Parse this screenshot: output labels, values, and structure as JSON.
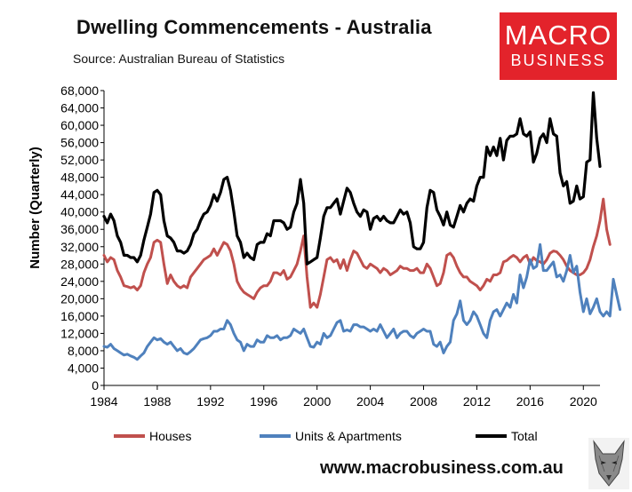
{
  "header": {
    "title": "Dwelling Commencements - Australia",
    "source": "Source:  Australian Bureau of Statistics"
  },
  "logo": {
    "line1": "MACRO",
    "line2": "BUSINESS",
    "color": "#e3232b"
  },
  "footer": {
    "url": "www.macrobusiness.com.au"
  },
  "chart_data": {
    "type": "line",
    "title": "Dwelling Commencements - Australia",
    "xlabel": "",
    "ylabel": "Number (Quarterly)",
    "ylim": [
      0,
      68000
    ],
    "xlim": [
      1984.0,
      2021.25
    ],
    "grid": false,
    "legend_position": "bottom",
    "x_ticks": [
      "1984",
      "1988",
      "1992",
      "1996",
      "2000",
      "2004",
      "2008",
      "2012",
      "2016",
      "2020"
    ],
    "y_ticks": [
      "0",
      "4,000",
      "8,000",
      "12,000",
      "16,000",
      "20,000",
      "24,000",
      "28,000",
      "32,000",
      "36,000",
      "40,000",
      "44,000",
      "48,000",
      "52,000",
      "56,000",
      "60,000",
      "64,000",
      "68,000"
    ],
    "x_start": 1984.0,
    "x_step": 0.25,
    "series": [
      {
        "name": "Houses",
        "color": "#c0504d",
        "values": [
          30000,
          28500,
          29500,
          29000,
          26500,
          25000,
          23000,
          22800,
          22500,
          22800,
          22000,
          23000,
          26000,
          28000,
          29500,
          33000,
          33500,
          33000,
          28000,
          23500,
          25500,
          24000,
          23000,
          22500,
          23000,
          22500,
          25000,
          26000,
          27000,
          28000,
          29000,
          29500,
          30000,
          31500,
          30000,
          31500,
          33000,
          32500,
          31000,
          28000,
          24000,
          22500,
          21500,
          21000,
          20500,
          20000,
          21500,
          22500,
          23000,
          23000,
          24000,
          26000,
          26000,
          25500,
          26500,
          24500,
          25000,
          26500,
          28000,
          31000,
          34500,
          25000,
          18000,
          19000,
          18000,
          21000,
          25000,
          29000,
          29500,
          28500,
          29000,
          27000,
          29000,
          26500,
          29000,
          31000,
          30500,
          29000,
          27500,
          27000,
          28000,
          27500,
          27000,
          26000,
          27000,
          26500,
          25500,
          26000,
          26500,
          27500,
          27000,
          27000,
          26500,
          26500,
          27000,
          26000,
          26000,
          28000,
          27000,
          25000,
          23000,
          23500,
          26000,
          30000,
          30500,
          29500,
          27500,
          26000,
          25000,
          25000,
          24000,
          23500,
          23000,
          22000,
          23000,
          24500,
          24000,
          25500,
          25500,
          26000,
          28500,
          28800,
          29500,
          30000,
          29500,
          28500,
          29500,
          30000,
          28000,
          29500,
          28800,
          28500,
          28000,
          29000,
          30500,
          31000,
          30800,
          30000,
          29000,
          27500,
          26500,
          26000,
          25500,
          25500,
          26000,
          27000,
          29000,
          32000,
          34500,
          38000,
          43000,
          36000,
          32500
        ]
      },
      {
        "name": "Units & Apartments",
        "color": "#4f81bd",
        "values": [
          9000,
          8800,
          9500,
          8500,
          8000,
          7500,
          7000,
          7200,
          6800,
          6500,
          6000,
          6800,
          7500,
          9000,
          10000,
          11000,
          10500,
          10800,
          10000,
          9500,
          10000,
          9000,
          8000,
          8500,
          7500,
          7200,
          7800,
          8500,
          9500,
          10500,
          10800,
          11000,
          11500,
          12500,
          12500,
          13000,
          13000,
          15000,
          14000,
          12000,
          10500,
          10000,
          8000,
          9500,
          9000,
          9000,
          10500,
          10000,
          10000,
          11500,
          11000,
          11000,
          11500,
          10500,
          11000,
          11000,
          11500,
          13000,
          12500,
          12000,
          13000,
          11000,
          9000,
          8800,
          10000,
          9500,
          12000,
          11000,
          11500,
          13000,
          14500,
          15000,
          12500,
          12800,
          12500,
          14000,
          14000,
          13500,
          13500,
          13000,
          12500,
          13000,
          12500,
          14000,
          12500,
          11000,
          12000,
          13000,
          11000,
          12000,
          12500,
          12500,
          11500,
          11000,
          12000,
          12500,
          13000,
          12500,
          12500,
          9500,
          9000,
          10000,
          7500,
          9000,
          10000,
          15000,
          16500,
          19500,
          15000,
          14000,
          15000,
          17000,
          16000,
          14000,
          12000,
          11000,
          15000,
          17000,
          17500,
          16000,
          17500,
          19000,
          18000,
          21000,
          19000,
          25500,
          22500,
          25000,
          29000,
          27000,
          27500,
          32500,
          26500,
          26500,
          27500,
          28500,
          25000,
          25500,
          24000,
          26500,
          30000,
          26000,
          27500,
          21500,
          17000,
          20000,
          16500,
          18000,
          20000,
          17000,
          16000,
          17000,
          16000,
          24500,
          21000,
          17500
        ]
      },
      {
        "name": "Total",
        "color": "#000000",
        "values": [
          39000,
          37500,
          39500,
          38000,
          34500,
          33000,
          30000,
          30000,
          29500,
          29500,
          28500,
          30000,
          33500,
          36500,
          39500,
          44500,
          45000,
          44000,
          38000,
          34500,
          34000,
          33000,
          31000,
          31000,
          30500,
          31000,
          32500,
          35000,
          36000,
          38000,
          39500,
          40000,
          41500,
          44000,
          42500,
          44500,
          47500,
          48000,
          45000,
          40000,
          34500,
          33000,
          29500,
          30500,
          29500,
          29000,
          32500,
          33000,
          33000,
          35000,
          34500,
          38000,
          38000,
          38000,
          37500,
          36000,
          36500,
          40000,
          42000,
          47500,
          42000,
          28000,
          28500,
          29000,
          29500,
          34000,
          39000,
          41000,
          41000,
          42000,
          43000,
          39500,
          42500,
          45500,
          44500,
          42000,
          40000,
          39000,
          40500,
          40000,
          36000,
          38500,
          39000,
          38000,
          39000,
          38000,
          37500,
          37500,
          39000,
          40500,
          39500,
          40000,
          37500,
          32000,
          31500,
          31500,
          33000,
          41000,
          45000,
          44500,
          40500,
          39000,
          37000,
          40000,
          37000,
          36500,
          39000,
          41500,
          40000,
          42000,
          43000,
          42500,
          46000,
          48000,
          48000,
          55000,
          53000,
          55000,
          53000,
          57000,
          52000,
          56500,
          57500,
          57500,
          58000,
          61500,
          58000,
          57500,
          58500,
          51500,
          53500,
          57000,
          58000,
          56000,
          61500,
          58000,
          57500,
          49000,
          46000,
          47000,
          42000,
          42500,
          46000,
          43000,
          43500,
          51500,
          52000,
          67500,
          57000,
          50500
        ]
      }
    ]
  }
}
